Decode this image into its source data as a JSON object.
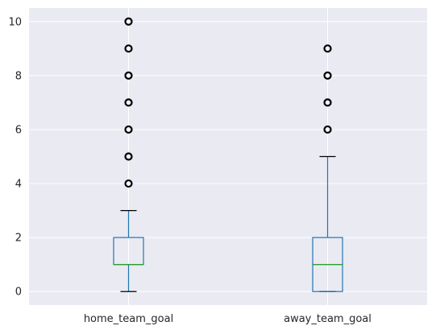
{
  "chart_data": {
    "type": "box",
    "title": "",
    "xlabel": "",
    "ylabel": "",
    "ylim": [
      -0.5,
      10.5
    ],
    "yticks": [
      0,
      2,
      4,
      6,
      8,
      10
    ],
    "grid": true,
    "colors": {
      "background": "#eaeaf2",
      "grid": "#ffffff",
      "box": "#1f77b4",
      "median": "#2ca02c",
      "whisker": "#1f77b4",
      "cap": "#000000",
      "flier": "#000000"
    },
    "categories": [
      "home_team_goal",
      "away_team_goal"
    ],
    "series": [
      {
        "category": "home_team_goal",
        "min": 0,
        "q1": 1,
        "median": 1,
        "q3": 2,
        "max": 3,
        "outliers": [
          4,
          5,
          6,
          7,
          8,
          9,
          10
        ]
      },
      {
        "category": "away_team_goal",
        "min": 0,
        "q1": 0,
        "median": 1,
        "q3": 2,
        "max": 5,
        "outliers": [
          6,
          7,
          8,
          9
        ]
      }
    ]
  }
}
